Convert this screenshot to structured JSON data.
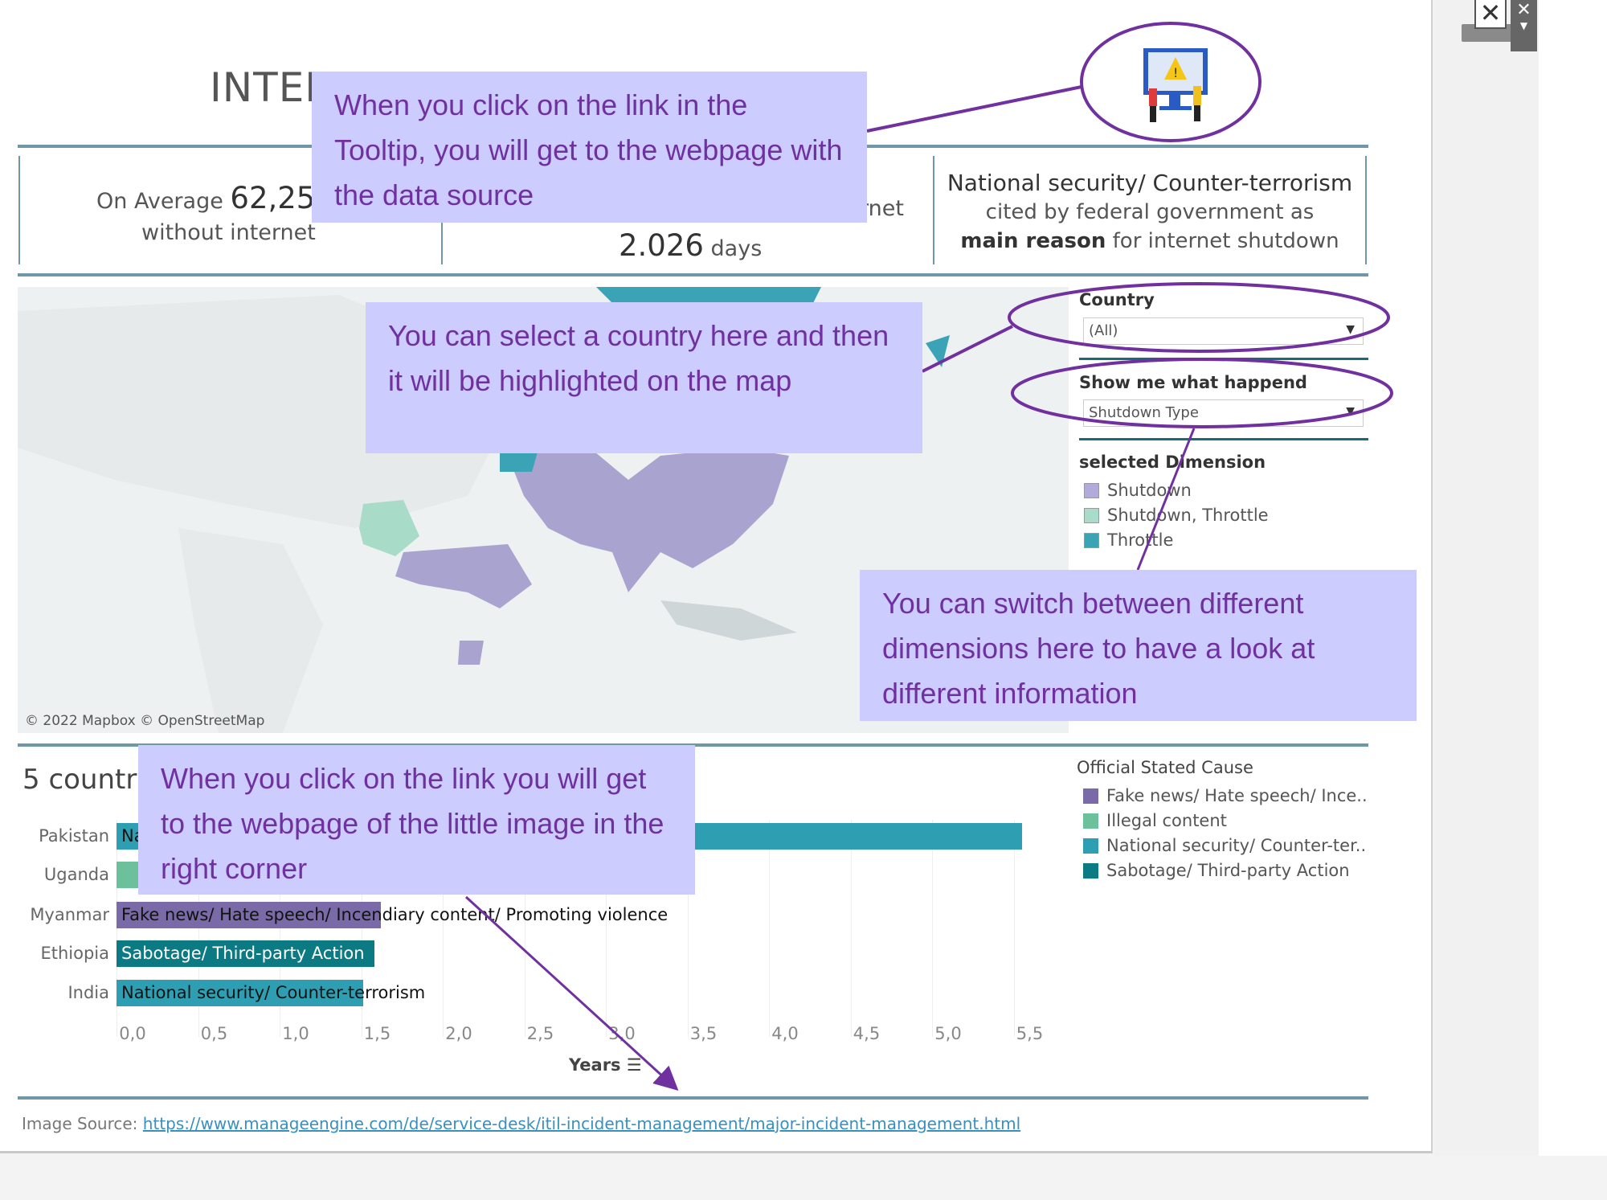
{
  "header": {
    "title": "INTER"
  },
  "kpis": {
    "left": {
      "prefix": "On Average",
      "value": "62,25",
      "suffix": "without internet"
    },
    "middle": {
      "partial": "rnet",
      "value": "2.026",
      "unit": "days"
    },
    "right": {
      "headline": "National security/ Counter-terrorism",
      "line2": "cited by federal government as",
      "line3_bold": "main reason",
      "line3_rest": "for internet shutdown"
    }
  },
  "map": {
    "attribution": "© 2022 Mapbox © OpenStreetMap"
  },
  "filters": {
    "country": {
      "label": "Country",
      "value": "(All)"
    },
    "dimension": {
      "label": "Show me what happend",
      "value": "Shutdown Type"
    }
  },
  "map_legend": {
    "title": "selected Dimension",
    "items": [
      {
        "label": "Shutdown",
        "color": "#b0abd8"
      },
      {
        "label": "Shutdown, Throttle",
        "color": "#a8dcc8"
      },
      {
        "label": "Throttle",
        "color": "#3aa3b5"
      }
    ]
  },
  "bar_section": {
    "title": "5 countries"
  },
  "chart_data": {
    "type": "bar",
    "orientation": "horizontal",
    "categories": [
      "Pakistan",
      "Uganda",
      "Myanmar",
      "Ethiopia",
      "India"
    ],
    "values": [
      5.55,
      null,
      1.62,
      1.58,
      1.51
    ],
    "bar_labels": [
      "Na",
      "",
      "Fake news/ Hate speech/ Incendiary content/ Promoting violence",
      "Sabotage/ Third-party Action",
      "National security/ Counter-terrorism"
    ],
    "bar_causes": [
      "National security/ Counter-ter..",
      "Illegal content",
      "Fake news/ Hate speech/ Ince..",
      "Sabotage/ Third-party Action",
      "National security/ Counter-ter.."
    ],
    "xlabel": "Years",
    "xlim": [
      0,
      5.5
    ],
    "xticks": [
      "0,0",
      "0,5",
      "1,0",
      "1,5",
      "2,0",
      "2,5",
      "3,0",
      "3,5",
      "4,0",
      "4,5",
      "5,0",
      "5,5"
    ],
    "grid": true
  },
  "cause_legend": {
    "title": "Official Stated Cause",
    "items": [
      {
        "label": "Fake news/ Hate speech/ Ince..",
        "color": "#7b6aa8"
      },
      {
        "label": "Illegal content",
        "color": "#6cc19c"
      },
      {
        "label": "National security/ Counter-ter..",
        "color": "#2e9fb2"
      },
      {
        "label": "Sabotage/ Third-party Action",
        "color": "#0b7a83"
      }
    ]
  },
  "footer": {
    "label": "Image Source:",
    "link": "https://www.manageengine.com/de/service-desk/itil-incident-management/major-incident-management.html"
  },
  "annotations": [
    "When you click on the link in the Tooltip, you will get to the webpage with the data source",
    "You can select a country here and then it will be highlighted on the map",
    "You can switch between different dimensions here to have a look at different information",
    "When you click on the link you will get to the webpage of the little image in the right corner"
  ],
  "window_controls": {
    "close_icon": "close-icon",
    "menu_icon": "dropdown-icon"
  }
}
